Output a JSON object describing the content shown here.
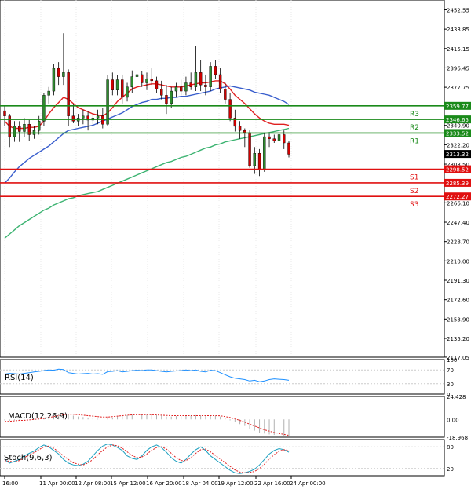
{
  "chart_data": {
    "type": "candlestick",
    "main": {
      "ylim": [
        2117.0,
        2462.0
      ],
      "yticks": [
        "2452.55",
        "2433.85",
        "2415.15",
        "2396.45",
        "2377.75",
        "2359.05",
        "2340.90",
        "2322.20",
        "2303.50",
        "2284.80",
        "2266.10",
        "2247.40",
        "2228.70",
        "2210.00",
        "2191.30",
        "2172.60",
        "2153.90",
        "2135.20",
        "2117.05"
      ],
      "levels": [
        {
          "label": "R3",
          "value": 2359.77,
          "tag": "2359.77",
          "color": "#1a8a1a"
        },
        {
          "label": "R2",
          "value": 2346.65,
          "tag": "2346.65",
          "color": "#1a8a1a"
        },
        {
          "label": "R1",
          "value": 2333.52,
          "tag": "2333.52",
          "color": "#1a8a1a"
        },
        {
          "label": "S1",
          "value": 2298.52,
          "tag": "2298.52",
          "color": "#e01010"
        },
        {
          "label": "S2",
          "value": 2285.39,
          "tag": "2285.39",
          "color": "#e01010"
        },
        {
          "label": "S3",
          "value": 2272.27,
          "tag": "2272.27",
          "color": "#e01010"
        }
      ],
      "last_price": {
        "value": 2313.32,
        "tag": "2313.32"
      },
      "candles": [
        [
          2355,
          2360,
          2340,
          2350
        ],
        [
          2350,
          2352,
          2320,
          2330
        ],
        [
          2330,
          2345,
          2325,
          2340
        ],
        [
          2340,
          2345,
          2325,
          2335
        ],
        [
          2335,
          2348,
          2330,
          2342
        ],
        [
          2342,
          2346,
          2326,
          2332
        ],
        [
          2332,
          2340,
          2328,
          2336
        ],
        [
          2336,
          2350,
          2332,
          2345
        ],
        [
          2345,
          2372,
          2340,
          2370
        ],
        [
          2370,
          2378,
          2362,
          2374
        ],
        [
          2374,
          2400,
          2370,
          2396
        ],
        [
          2396,
          2402,
          2380,
          2388
        ],
        [
          2388,
          2430,
          2380,
          2392
        ],
        [
          2392,
          2395,
          2340,
          2350
        ],
        [
          2350,
          2362,
          2343,
          2345
        ],
        [
          2345,
          2352,
          2340,
          2348
        ],
        [
          2348,
          2356,
          2342,
          2350
        ],
        [
          2350,
          2354,
          2336,
          2346
        ],
        [
          2346,
          2352,
          2340,
          2348
        ],
        [
          2348,
          2356,
          2342,
          2350
        ],
        [
          2350,
          2358,
          2338,
          2342
        ],
        [
          2342,
          2390,
          2340,
          2385
        ],
        [
          2385,
          2392,
          2370,
          2375
        ],
        [
          2375,
          2390,
          2370,
          2385
        ],
        [
          2385,
          2390,
          2362,
          2368
        ],
        [
          2368,
          2382,
          2364,
          2378
        ],
        [
          2378,
          2394,
          2372,
          2388
        ],
        [
          2388,
          2396,
          2380,
          2390
        ],
        [
          2390,
          2393,
          2378,
          2382
        ],
        [
          2382,
          2392,
          2375,
          2386
        ],
        [
          2386,
          2396,
          2380,
          2384
        ],
        [
          2384,
          2388,
          2372,
          2376
        ],
        [
          2376,
          2384,
          2366,
          2370
        ],
        [
          2370,
          2380,
          2352,
          2362
        ],
        [
          2362,
          2378,
          2358,
          2374
        ],
        [
          2374,
          2382,
          2368,
          2378
        ],
        [
          2378,
          2385,
          2370,
          2374
        ],
        [
          2374,
          2388,
          2370,
          2382
        ],
        [
          2382,
          2392,
          2375,
          2378
        ],
        [
          2378,
          2418,
          2374,
          2392
        ],
        [
          2392,
          2404,
          2374,
          2380
        ],
        [
          2380,
          2390,
          2370,
          2378
        ],
        [
          2378,
          2402,
          2374,
          2398
        ],
        [
          2398,
          2404,
          2386,
          2390
        ],
        [
          2390,
          2396,
          2372,
          2376
        ],
        [
          2376,
          2382,
          2362,
          2366
        ],
        [
          2366,
          2372,
          2345,
          2348
        ],
        [
          2348,
          2356,
          2335,
          2340
        ],
        [
          2340,
          2345,
          2328,
          2336
        ],
        [
          2336,
          2338,
          2320,
          2334
        ],
        [
          2334,
          2336,
          2300,
          2302
        ],
        [
          2302,
          2320,
          2294,
          2314
        ],
        [
          2314,
          2318,
          2292,
          2298
        ],
        [
          2298,
          2334,
          2296,
          2330
        ],
        [
          2330,
          2334,
          2320,
          2328
        ],
        [
          2328,
          2332,
          2324,
          2326
        ],
        [
          2326,
          2336,
          2320,
          2332
        ],
        [
          2332,
          2336,
          2318,
          2324
        ],
        [
          2324,
          2326,
          2310,
          2313
        ]
      ],
      "ma_red": [
        2345,
        2340,
        2338,
        2338,
        2338,
        2339,
        2339,
        2340,
        2345,
        2352,
        2358,
        2363,
        2368,
        2366,
        2362,
        2358,
        2356,
        2354,
        2352,
        2351,
        2350,
        2353,
        2358,
        2364,
        2368,
        2372,
        2376,
        2378,
        2379,
        2380,
        2381,
        2381,
        2380,
        2379,
        2378,
        2378,
        2378,
        2379,
        2380,
        2381,
        2382,
        2382,
        2383,
        2384,
        2384,
        2381,
        2376,
        2370,
        2366,
        2362,
        2357,
        2352,
        2348,
        2345,
        2343,
        2342,
        2342,
        2342,
        2341
      ],
      "ma_blue": [
        2285,
        2290,
        2296,
        2301,
        2305,
        2309,
        2312,
        2315,
        2318,
        2321,
        2325,
        2329,
        2333,
        2336,
        2337,
        2338,
        2339,
        2340,
        2341,
        2343,
        2345,
        2347,
        2349,
        2351,
        2353,
        2356,
        2359,
        2361,
        2363,
        2364,
        2366,
        2366,
        2367,
        2367,
        2368,
        2368,
        2369,
        2369,
        2370,
        2371,
        2372,
        2373,
        2374,
        2376,
        2377,
        2378,
        2379,
        2378,
        2377,
        2376,
        2375,
        2373,
        2372,
        2371,
        2370,
        2368,
        2366,
        2364,
        2361
      ],
      "ma_green": [
        2232,
        2236,
        2240,
        2244,
        2247,
        2250,
        2253,
        2256,
        2259,
        2261,
        2264,
        2266,
        2268,
        2270,
        2271,
        2273,
        2274,
        2275,
        2276,
        2277,
        2279,
        2281,
        2283,
        2285,
        2287,
        2289,
        2291,
        2293,
        2295,
        2297,
        2299,
        2301,
        2303,
        2305,
        2306,
        2308,
        2310,
        2311,
        2313,
        2315,
        2317,
        2319,
        2320,
        2322,
        2323,
        2325,
        2326,
        2327,
        2328,
        2329,
        2330,
        2331,
        2332,
        2333,
        2334,
        2335,
        2336,
        2337,
        2338
      ]
    },
    "xaxis_labels": [
      "16:00",
      "11 Apr 00:00",
      "12 Apr 08:00",
      "15 Apr 12:00",
      "16 Apr 20:00",
      "18 Apr 04:00",
      "19 Apr 12:00",
      "22 Apr 16:00",
      "24 Apr 00:00"
    ],
    "rsi": {
      "label": "RSI(14)",
      "yticks": [
        "100",
        "70",
        "30",
        "0"
      ],
      "values": [
        58,
        60,
        59,
        58,
        60,
        62,
        64,
        66,
        68,
        70,
        69,
        72,
        71,
        62,
        60,
        58,
        59,
        60,
        58,
        59,
        57,
        65,
        66,
        68,
        64,
        66,
        68,
        69,
        68,
        70,
        70,
        68,
        66,
        64,
        66,
        67,
        68,
        70,
        68,
        70,
        66,
        64,
        69,
        68,
        62,
        56,
        50,
        46,
        44,
        42,
        38,
        40,
        36,
        38,
        42,
        44,
        43,
        42,
        40
      ]
    },
    "macd": {
      "label": "MACD(12,26,9)",
      "yticks": [
        "24.428",
        "0.00",
        "-18.968"
      ],
      "hist": [
        -1,
        -1.5,
        -1,
        -0.5,
        -0.5,
        0,
        0.5,
        1,
        2,
        3,
        4,
        6,
        7,
        5,
        4,
        3,
        2.5,
        2,
        1,
        0.5,
        0,
        1,
        2,
        3,
        4,
        4.5,
        5,
        5.5,
        5,
        5.5,
        5,
        4.5,
        4,
        3,
        3,
        3.5,
        3.5,
        4,
        4,
        4.5,
        4,
        3.5,
        4,
        4,
        3,
        1,
        -1,
        -3,
        -5,
        -7,
        -10,
        -12,
        -14,
        -15,
        -16,
        -16.5,
        -17,
        -17.5,
        -18
      ],
      "signal": [
        -2,
        -2,
        -1.5,
        -1,
        -1,
        -0.5,
        0,
        0.5,
        1,
        2,
        3,
        4,
        5,
        5.5,
        5.5,
        5,
        4.5,
        4,
        3.5,
        3,
        2.5,
        2.5,
        3,
        3.5,
        4,
        4.5,
        4.8,
        5,
        5,
        5,
        5,
        4.8,
        4.5,
        4.2,
        4,
        4,
        4,
        4,
        4,
        4,
        4,
        4,
        4,
        4,
        3.8,
        3,
        2,
        0.5,
        -1,
        -3,
        -5,
        -7,
        -9,
        -11,
        -12.5,
        -14,
        -15,
        -16,
        -17
      ]
    },
    "stoch": {
      "label": "Stoch(9,6,3)",
      "yticks": [
        "80",
        "20"
      ],
      "k": [
        45,
        35,
        40,
        45,
        55,
        62,
        68,
        78,
        85,
        80,
        70,
        60,
        45,
        35,
        30,
        28,
        32,
        40,
        55,
        70,
        82,
        88,
        85,
        78,
        70,
        55,
        48,
        45,
        55,
        70,
        80,
        85,
        78,
        65,
        50,
        40,
        35,
        45,
        60,
        72,
        80,
        70,
        55,
        45,
        35,
        25,
        15,
        8,
        6,
        8,
        12,
        18,
        30,
        45,
        60,
        70,
        75,
        72,
        65
      ],
      "d": [
        42,
        40,
        38,
        42,
        50,
        58,
        64,
        72,
        80,
        82,
        76,
        66,
        55,
        45,
        36,
        32,
        30,
        35,
        45,
        58,
        70,
        80,
        85,
        83,
        76,
        66,
        56,
        50,
        52,
        60,
        70,
        78,
        80,
        74,
        62,
        50,
        42,
        42,
        50,
        62,
        72,
        74,
        66,
        56,
        46,
        36,
        26,
        16,
        10,
        8,
        9,
        12,
        20,
        32,
        46,
        58,
        68,
        72,
        70
      ]
    }
  }
}
